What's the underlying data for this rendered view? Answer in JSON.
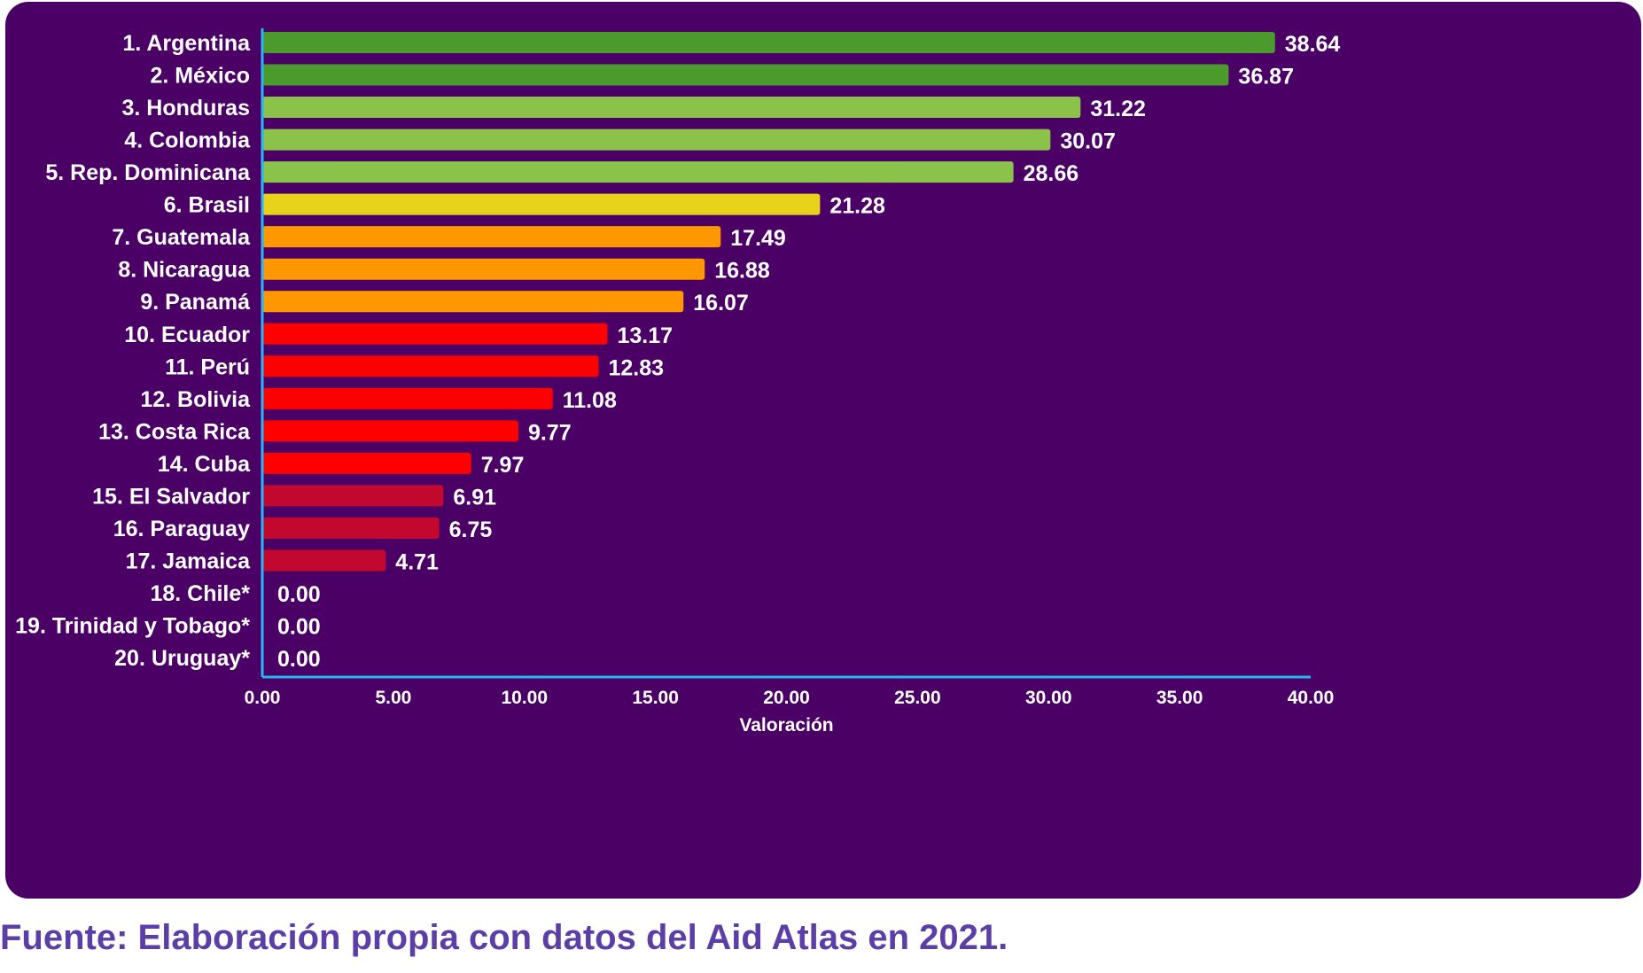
{
  "chart_data": {
    "type": "bar",
    "orientation": "horizontal",
    "categories": [
      "1. Argentina",
      "2. México",
      "3. Honduras",
      "4. Colombia",
      "5. Rep. Dominicana",
      "6. Brasil",
      "7. Guatemala",
      "8. Nicaragua",
      "9. Panamá",
      "10. Ecuador",
      "11. Perú",
      "12. Bolivia",
      "13. Costa Rica",
      "14. Cuba",
      "15. El Salvador",
      "16. Paraguay",
      "17. Jamaica",
      "18. Chile*",
      "19. Trinidad y Tobago*",
      "20. Uruguay*"
    ],
    "values": [
      38.64,
      36.87,
      31.22,
      30.07,
      28.66,
      21.28,
      17.49,
      16.88,
      16.07,
      13.17,
      12.83,
      11.08,
      9.77,
      7.97,
      6.91,
      6.75,
      4.71,
      0.0,
      0.0,
      0.0
    ],
    "value_labels": [
      "38.64",
      "36.87",
      "31.22",
      "30.07",
      "28.66",
      "21.28",
      "17.49",
      "16.88",
      "16.07",
      "13.17",
      "12.83",
      "11.08",
      "9.77",
      "7.97",
      "6.91",
      "6.75",
      "4.71",
      "0.00",
      "0.00",
      "0.00"
    ],
    "bar_colors": [
      "#4a9a2c",
      "#4a9a2c",
      "#8bc34a",
      "#8bc34a",
      "#8bc34a",
      "#e8d21a",
      "#ff9800",
      "#ff9800",
      "#ff9800",
      "#ff0000",
      "#ff0000",
      "#ff0000",
      "#ff0000",
      "#ff0000",
      "#c2082e",
      "#c2082e",
      "#c2082e",
      "#c2082e",
      "#c2082e",
      "#c2082e"
    ],
    "x_ticks": [
      "0.00",
      "5.00",
      "10.00",
      "15.00",
      "20.00",
      "25.00",
      "30.00",
      "35.00",
      "40.00"
    ],
    "xlim": [
      0,
      40
    ],
    "xlabel": "Valoración",
    "ylabel": "",
    "title": "",
    "grid": false,
    "legend": "none"
  },
  "colors": {
    "panel_background": "#4a0064",
    "axis_line": "#29b6f6",
    "text": "#ffffff",
    "source_text": "#5b3fa6"
  },
  "source_note": "Fuente: Elaboración propia con datos del Aid Atlas en 2021."
}
